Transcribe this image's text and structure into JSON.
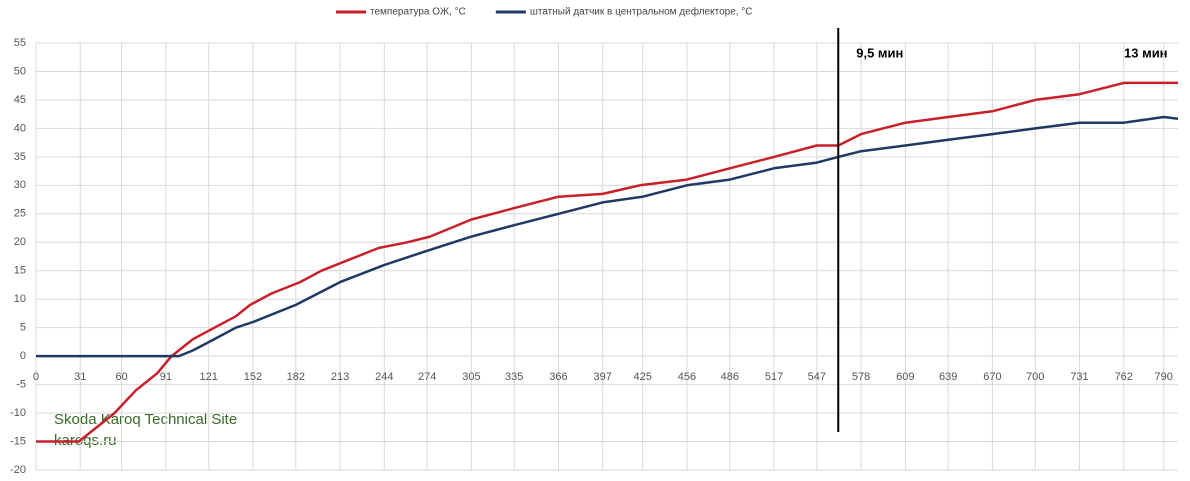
{
  "chart_data": {
    "type": "line",
    "series": [
      {
        "name": "температура ОЖ, °C",
        "color": "#c8202a",
        "x": [
          0,
          30,
          40,
          55,
          70,
          85,
          95,
          110,
          125,
          140,
          150,
          165,
          185,
          200,
          220,
          240,
          260,
          276,
          305,
          335,
          366,
          397,
          423,
          456,
          486,
          517,
          547,
          562,
          578,
          609,
          639,
          670,
          700,
          731,
          762,
          790,
          800
        ],
        "values": [
          -15,
          -15,
          -13,
          -10,
          -6,
          -3,
          0,
          3,
          5,
          7,
          9,
          11,
          13,
          15,
          17,
          19,
          20,
          21,
          24,
          26,
          28,
          28.5,
          30,
          31,
          33,
          35,
          37,
          37,
          39,
          41,
          42,
          43,
          45,
          46,
          48,
          48,
          48
        ]
      },
      {
        "name": "штатный датчик в центральном дефлекторе, °C",
        "color": "#1f3864",
        "x": [
          0,
          100,
          110,
          125,
          140,
          152,
          182,
          213,
          244,
          274,
          305,
          335,
          366,
          397,
          425,
          456,
          486,
          517,
          547,
          562,
          578,
          609,
          639,
          670,
          700,
          731,
          762,
          790,
          800
        ],
        "values": [
          0,
          0,
          1,
          3,
          5,
          6,
          9,
          13,
          16,
          18.5,
          21,
          23,
          25,
          27,
          28,
          30,
          31,
          33,
          34,
          35,
          36,
          37,
          38,
          39,
          40,
          41,
          41,
          42,
          41.7
        ]
      }
    ],
    "xlim": [
      0,
      800
    ],
    "ylim": [
      -20,
      55
    ],
    "xticks": [
      0,
      31,
      60,
      91,
      121,
      152,
      182,
      213,
      244,
      274,
      305,
      335,
      366,
      397,
      425,
      456,
      486,
      517,
      547,
      578,
      609,
      639,
      670,
      700,
      731,
      762,
      790
    ],
    "yticks": [
      -20,
      -15,
      -10,
      -5,
      0,
      5,
      10,
      15,
      20,
      25,
      30,
      35,
      40,
      45,
      50,
      55
    ],
    "grid": true,
    "vline": 562,
    "annotations": [
      "9,5 мин",
      "13 мин"
    ],
    "watermark": [
      "Skoda Karoq Technical Site",
      "karoqs.ru"
    ]
  }
}
